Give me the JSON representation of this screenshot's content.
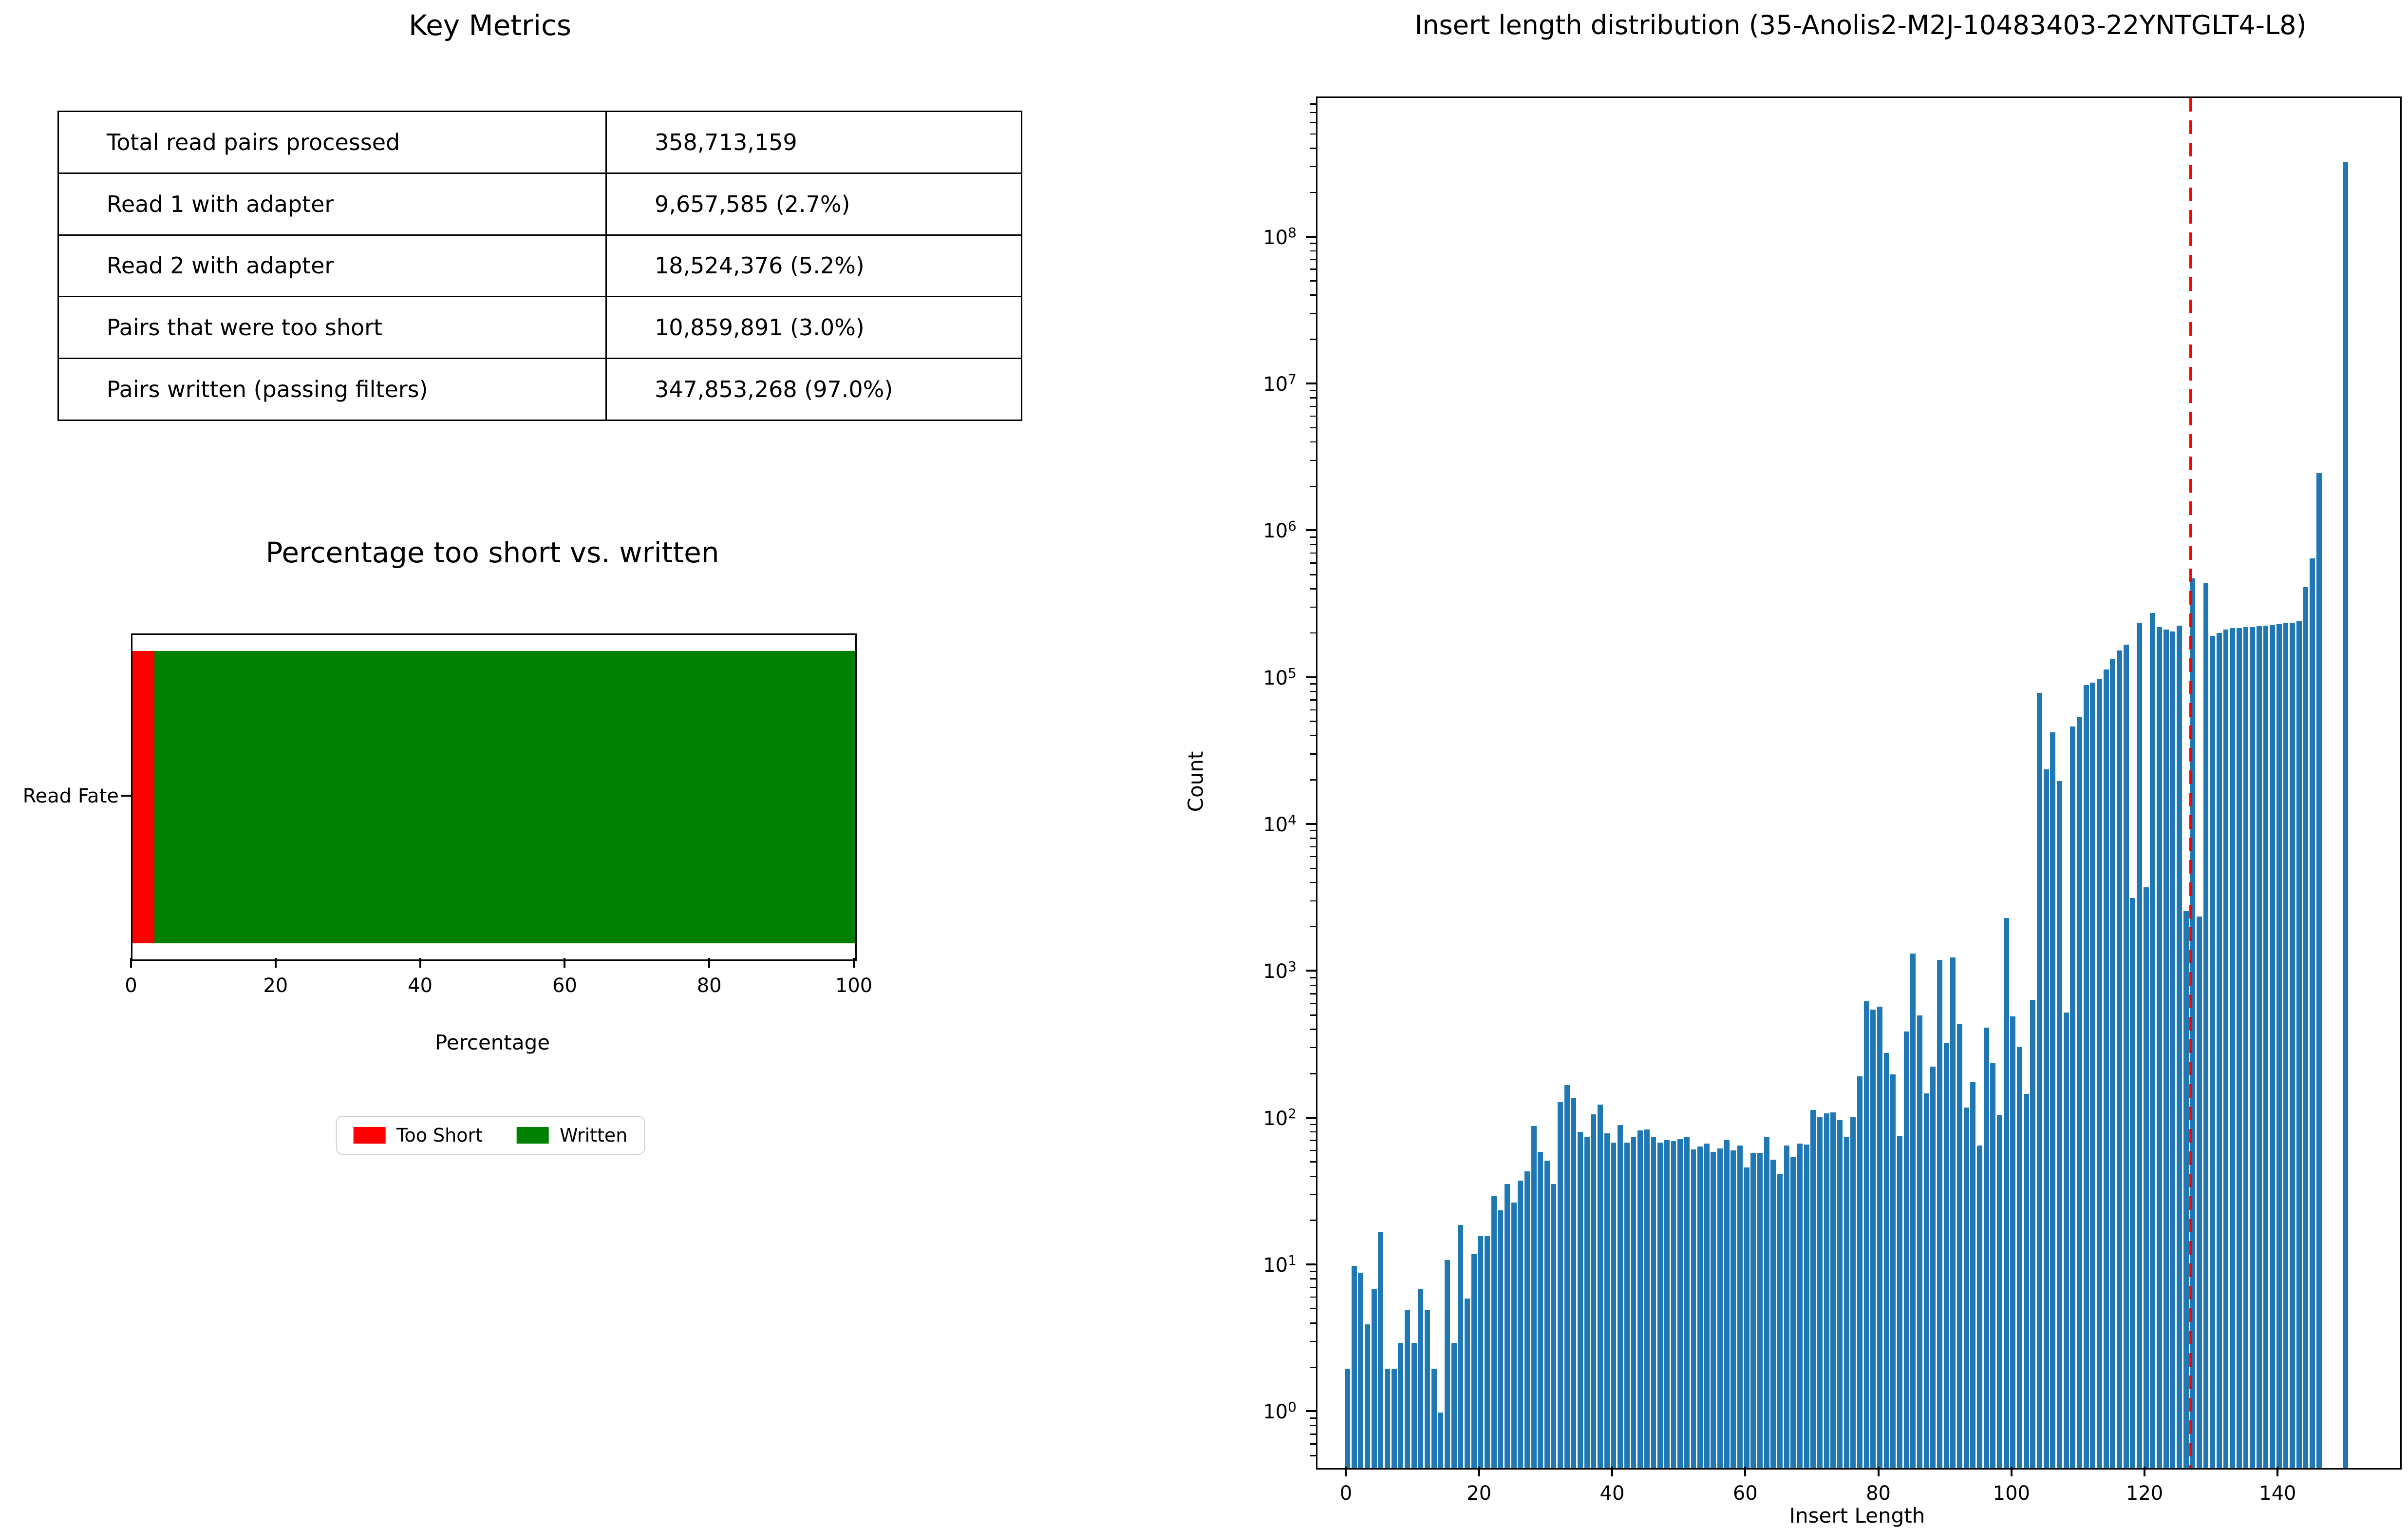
{
  "table": {
    "title": "Key Metrics",
    "rows": [
      {
        "label": "Total read pairs processed",
        "value": "358,713,159"
      },
      {
        "label": "Read 1 with adapter",
        "value": "9,657,585 (2.7%)"
      },
      {
        "label": "Read 2 with adapter",
        "value": "18,524,376 (5.2%)"
      },
      {
        "label": "Pairs that were too short",
        "value": "10,859,891 (3.0%)"
      },
      {
        "label": "Pairs written (passing filters)",
        "value": "347,853,268 (97.0%)"
      }
    ]
  },
  "chart_data": [
    {
      "type": "bar",
      "orientation": "horizontal",
      "stacked": true,
      "title": "Percentage too short vs. written",
      "categories": [
        "Read Fate"
      ],
      "series": [
        {
          "name": "Too Short",
          "values": [
            3.0
          ],
          "color": "#ff0000"
        },
        {
          "name": "Written",
          "values": [
            97.0
          ],
          "color": "#008000"
        }
      ],
      "xlabel": "Percentage",
      "xlim": [
        0,
        100
      ],
      "xticks": [
        0,
        20,
        40,
        60,
        80,
        100
      ],
      "legend_position": "below-center",
      "grid": false
    },
    {
      "type": "bar",
      "title": "Insert length distribution (35-Anolis2-M2J-10483403-22YNTGLT4-L8)",
      "xlabel": "Insert Length",
      "ylabel": "Count",
      "yscale": "log",
      "bar_color": "#1f77b4",
      "xlim": [
        -4.5,
        158.2
      ],
      "ylim": [
        0.42,
        900000000
      ],
      "xticks": [
        0,
        20,
        40,
        60,
        80,
        100,
        120,
        140
      ],
      "ytick_exponents": [
        0,
        1,
        2,
        3,
        4,
        5,
        6,
        7,
        8
      ],
      "marker_line": {
        "x": 126.7,
        "color": "#ff0000",
        "style": "dashed"
      },
      "grid": false,
      "x_start": 0,
      "values": [
        2,
        10,
        9,
        4,
        7,
        17,
        2,
        2,
        3,
        5,
        3,
        7,
        5,
        2,
        1,
        11,
        3,
        19,
        6,
        12,
        16,
        16,
        30,
        24,
        36,
        27,
        38,
        44,
        90,
        60,
        52,
        36,
        130,
        170,
        140,
        82,
        75,
        108,
        126,
        80,
        69,
        91,
        69,
        75,
        84,
        85,
        75,
        69,
        72,
        71,
        73,
        76,
        62,
        65,
        68,
        60,
        63,
        72,
        61,
        66,
        47,
        59,
        59,
        75,
        53,
        42,
        66,
        55,
        68,
        67,
        115,
        103,
        109,
        111,
        98,
        75,
        103,
        196,
        635,
        558,
        583,
        283,
        202,
        77,
        396,
        1340,
        510,
        150,
        228,
        1215,
        330,
        1260,
        445,
        120,
        178,
        66,
        420,
        240,
        107,
        2350,
        500,
        310,
        148,
        650,
        80000,
        24000,
        43000,
        20000,
        530,
        47000,
        55000,
        90000,
        94000,
        100000,
        115000,
        135000,
        155000,
        170000,
        3200,
        240000,
        3800,
        280000,
        225000,
        215000,
        210000,
        230000,
        2600,
        480000,
        2400,
        450000,
        195000,
        205000,
        215000,
        220000,
        220000,
        225000,
        225000,
        228000,
        230000,
        232000,
        235000,
        238000,
        240000,
        245000,
        420000,
        660000,
        2500000,
        0,
        0,
        0,
        330000000
      ]
    }
  ]
}
